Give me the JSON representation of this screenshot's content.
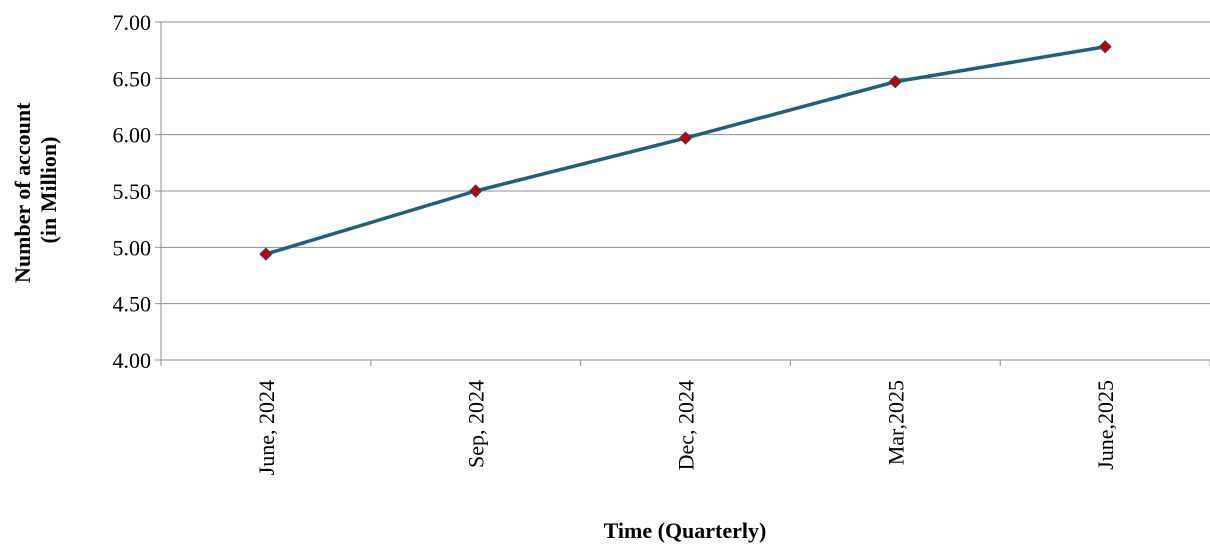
{
  "chart_data": {
    "type": "line",
    "title": "",
    "xlabel": "Time (Quarterly)",
    "ylabel": [
      "Number of account",
      "(in Million)"
    ],
    "categories": [
      "June, 2024",
      "Sep, 2024",
      "Dec, 2024",
      "Mar,2025",
      "June,2025"
    ],
    "series": [
      {
        "values": [
          4.94,
          5.5,
          5.97,
          6.47,
          6.78
        ]
      }
    ],
    "ylim": [
      4.0,
      7.0
    ],
    "yticks": [
      "4.00",
      "4.50",
      "5.00",
      "5.50",
      "6.00",
      "6.50",
      "7.00"
    ],
    "grid": true,
    "legend": "none",
    "colors": {
      "line": "#1f5f7f",
      "marker": "#c00000"
    }
  }
}
